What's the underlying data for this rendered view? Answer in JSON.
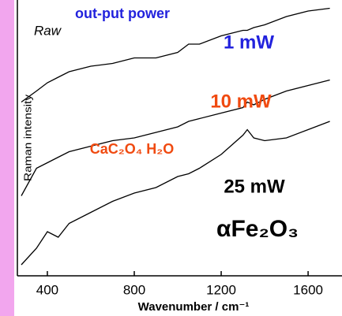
{
  "chart_data": {
    "type": "line",
    "title": "out-put power",
    "subtitle": "Raw",
    "x_label": "Wavenumber  / cm⁻¹",
    "y_label": "Raman intensity",
    "annotations": [
      {
        "text": "CaC₂O₄ H₂O",
        "color": "#f04a10"
      },
      {
        "text": "αFe₂O₃",
        "color": "#000000"
      }
    ],
    "title_color": "#2222dd",
    "x": [
      280,
      350,
      400,
      450,
      500,
      600,
      700,
      800,
      900,
      1000,
      1050,
      1100,
      1200,
      1300,
      1320,
      1350,
      1400,
      1500,
      1600,
      1700
    ],
    "series": [
      {
        "name": "1 mW",
        "color": "#000000",
        "label_color": "#2222dd",
        "values": [
          63,
          67,
          70,
          72,
          74,
          76,
          77,
          79,
          79,
          81,
          84,
          84,
          87,
          89,
          89,
          90,
          91,
          94,
          96,
          97
        ]
      },
      {
        "name": "10 mW",
        "color": "#000000",
        "label_color": "#f04a10",
        "values": [
          29,
          39,
          41,
          43,
          45,
          47,
          49,
          50,
          52,
          54,
          56,
          57,
          59,
          61,
          63,
          62,
          64,
          67,
          69,
          71
        ]
      },
      {
        "name": "25 mW",
        "color": "#000000",
        "label_color": "#000000",
        "values": [
          4,
          10,
          16,
          14,
          19,
          23,
          27,
          30,
          32,
          36,
          37,
          39,
          44,
          51,
          53,
          50,
          49,
          50,
          53,
          56
        ]
      }
    ],
    "xlim": [
      262,
      1756
    ],
    "ylim": [
      0,
      100
    ],
    "xticks": [
      400,
      800,
      1200,
      1600
    ]
  }
}
